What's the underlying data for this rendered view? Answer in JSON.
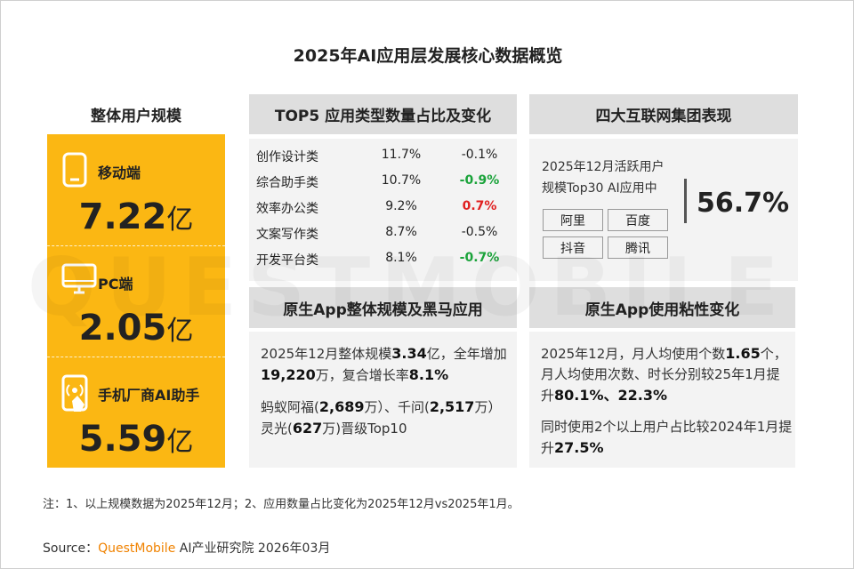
{
  "title": "2025年AI应用层发展核心数据概览",
  "watermark": "QUESTMOBILE",
  "user_scale": {
    "heading": "整体用户规模",
    "items": [
      {
        "label": "移动端",
        "value": "7.22",
        "unit": "亿"
      },
      {
        "label": "PC端",
        "value": "2.05",
        "unit": "亿"
      },
      {
        "label": "手机厂商AI助手",
        "value": "5.59",
        "unit": "亿"
      }
    ]
  },
  "top5": {
    "heading": "TOP5 应用类型数量占比及变化",
    "rows": [
      {
        "name": "创作设计类",
        "share": "11.7%",
        "change": "-0.1%",
        "color": "#222222"
      },
      {
        "name": "综合助手类",
        "share": "10.7%",
        "change": "-0.9%",
        "color": "#1aa33a"
      },
      {
        "name": "效率办公类",
        "share": "9.2%",
        "change": "0.7%",
        "color": "#e02020"
      },
      {
        "name": "文案写作类",
        "share": "8.7%",
        "change": "-0.5%",
        "color": "#222222"
      },
      {
        "name": "开发平台类",
        "share": "8.1%",
        "change": "-0.7%",
        "color": "#1aa33a"
      }
    ]
  },
  "groups": {
    "heading": "四大互联网集团表现",
    "desc": [
      "2025年12月活跃用户",
      "规模Top30 AI应用中"
    ],
    "companies": [
      "阿里",
      "百度",
      "抖音",
      "腾讯"
    ],
    "share": "56.7%"
  },
  "native_app": {
    "heading": "原生App整体规模及黑马应用",
    "paragraphs": [
      [
        {
          "text": "2025年12月整体规模",
          "bold": false
        },
        {
          "text": "3.34",
          "bold": true
        },
        {
          "text": "亿，全年增加",
          "bold": false
        },
        {
          "text": "19,220",
          "bold": true
        },
        {
          "text": "万，复合增长率",
          "bold": false
        },
        {
          "text": "8.1%",
          "bold": true
        }
      ],
      [
        {
          "text": "蚂蚁阿福(",
          "bold": false
        },
        {
          "text": "2,689",
          "bold": true
        },
        {
          "text": "万）、千问(",
          "bold": false
        },
        {
          "text": "2,517",
          "bold": true
        },
        {
          "text": "万）灵光(",
          "bold": false
        },
        {
          "text": "627",
          "bold": true
        },
        {
          "text": "万)晋级Top10",
          "bold": false
        }
      ]
    ]
  },
  "stickiness": {
    "heading": "原生App使用粘性变化",
    "paragraphs": [
      [
        {
          "text": "2025年12月，月人均使用个数",
          "bold": false
        },
        {
          "text": "1.65",
          "bold": true
        },
        {
          "text": "个，月人均使用次数、时长分别较25年1月提升",
          "bold": false
        },
        {
          "text": "80.1%、22.3%",
          "bold": true
        }
      ],
      [
        {
          "text": "同时使用2个以上用户占比较2024年1月提升",
          "bold": false
        },
        {
          "text": "27.5%",
          "bold": true
        }
      ]
    ]
  },
  "footnote": "注：1、以上规模数据为2025年12月；2、应用数量占比变化为2025年12月vs2025年1月。",
  "source": [
    {
      "text": "Source：",
      "color": "#333333"
    },
    {
      "text": "QuestMobile",
      "color": "#f08200"
    },
    {
      "text": " AI产业研究院 2026年03月",
      "color": "#333333"
    }
  ]
}
